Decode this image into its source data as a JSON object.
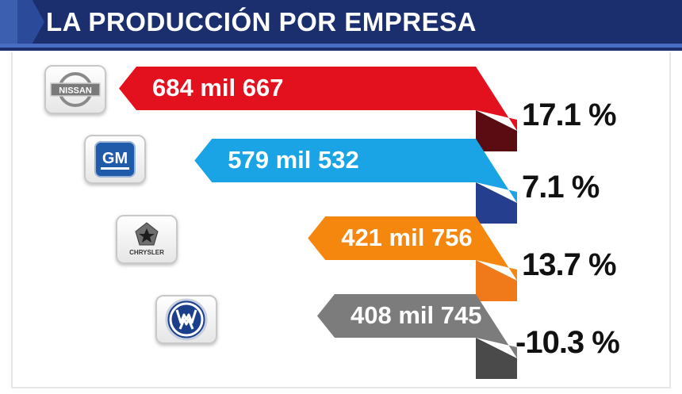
{
  "header": {
    "title": "LA PRODUCCIÓN POR EMPRESA"
  },
  "chart_data": {
    "type": "bar",
    "title": "LA PRODUCCIÓN POR EMPRESA",
    "categories": [
      "NISSAN",
      "GM",
      "CHRYSLER",
      "VW"
    ],
    "values": [
      684667,
      579532,
      421756,
      408745
    ],
    "value_labels": [
      "684 mil 667",
      "579 mil 532",
      "421 mil 756",
      "408 mil 745"
    ],
    "change_pct": [
      17.1,
      7.1,
      13.7,
      -10.3
    ],
    "change_labels": [
      "17.1 %",
      "7.1 %",
      "13.7 %",
      "-10.3 %"
    ],
    "colors": [
      "#e3101e",
      "#1aa4e6",
      "#f5870f",
      "#7c7c7c"
    ],
    "shade_colors": [
      "#5a0c12",
      "#253e8e",
      "#f07a1a",
      "#4a4a4a"
    ]
  },
  "logos": [
    {
      "name": "nissan-logo",
      "text": "NISSAN"
    },
    {
      "name": "gm-logo",
      "text": "GM"
    },
    {
      "name": "chrysler-logo",
      "text": "CHRYSLER"
    },
    {
      "name": "vw-logo",
      "text": "VW"
    }
  ]
}
